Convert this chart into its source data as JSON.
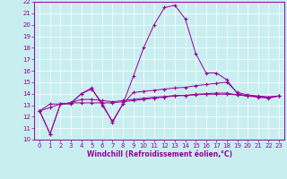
{
  "xlabel": "Windchill (Refroidissement éolien,°C)",
  "ylabel": "",
  "background_color": "#c8eef0",
  "line_color": "#990099",
  "grid_color": "#ffffff",
  "xlim": [
    -0.5,
    23.5
  ],
  "ylim": [
    10,
    22
  ],
  "xticks": [
    0,
    1,
    2,
    3,
    4,
    5,
    6,
    7,
    8,
    9,
    10,
    11,
    12,
    13,
    14,
    15,
    16,
    17,
    18,
    19,
    20,
    21,
    22,
    23
  ],
  "yticks": [
    10,
    11,
    12,
    13,
    14,
    15,
    16,
    17,
    18,
    19,
    20,
    21,
    22
  ],
  "lines": [
    [
      12.5,
      10.5,
      13.1,
      13.1,
      14.0,
      14.5,
      13.0,
      11.6,
      13.1,
      15.5,
      18.0,
      20.0,
      21.5,
      21.7,
      20.5,
      17.5,
      15.8,
      15.8,
      15.2,
      14.0,
      13.8,
      13.7,
      13.6,
      13.8
    ],
    [
      12.5,
      10.5,
      13.1,
      13.2,
      14.0,
      14.4,
      13.2,
      11.5,
      13.1,
      14.1,
      14.2,
      14.3,
      14.4,
      14.5,
      14.55,
      14.7,
      14.8,
      14.9,
      15.0,
      14.1,
      13.9,
      13.8,
      13.7,
      13.8
    ],
    [
      12.5,
      12.8,
      13.1,
      13.2,
      13.2,
      13.2,
      13.2,
      13.2,
      13.3,
      13.4,
      13.5,
      13.6,
      13.7,
      13.8,
      13.85,
      13.95,
      14.0,
      14.05,
      14.05,
      13.9,
      13.8,
      13.75,
      13.7,
      13.8
    ],
    [
      12.5,
      13.1,
      13.1,
      13.2,
      13.5,
      13.5,
      13.4,
      13.3,
      13.4,
      13.5,
      13.6,
      13.7,
      13.75,
      13.85,
      13.85,
      13.9,
      13.95,
      13.95,
      13.95,
      13.9,
      13.8,
      13.75,
      13.7,
      13.8
    ]
  ]
}
